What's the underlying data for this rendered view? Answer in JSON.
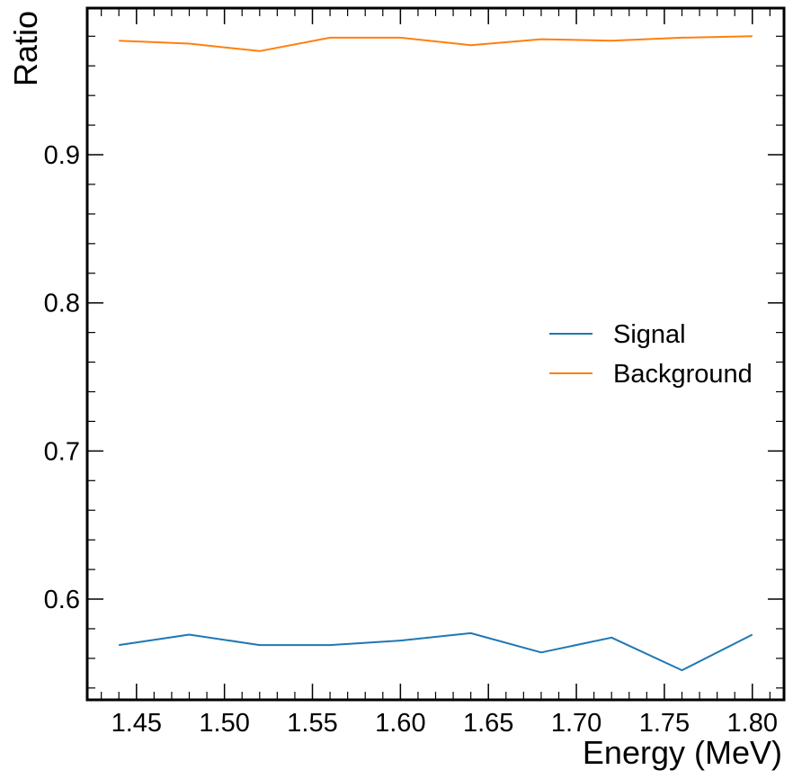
{
  "chart_data": {
    "type": "line",
    "xlabel": "Energy (MeV)",
    "ylabel": "Ratio",
    "xlim": [
      1.422,
      1.818
    ],
    "ylim": [
      0.532,
      0.999
    ],
    "x": [
      1.44,
      1.48,
      1.52,
      1.56,
      1.6,
      1.64,
      1.68,
      1.72,
      1.76,
      1.8
    ],
    "x_ticks": [
      "1.45",
      "1.50",
      "1.55",
      "1.60",
      "1.65",
      "1.70",
      "1.75",
      "1.80"
    ],
    "y_ticks": [
      "0.6",
      "0.7",
      "0.8",
      "0.9"
    ],
    "grid": false,
    "legend_position": "center-right",
    "series": [
      {
        "name": "Signal",
        "color": "#1f77b4",
        "values": [
          0.569,
          0.576,
          0.569,
          0.569,
          0.572,
          0.577,
          0.564,
          0.574,
          0.552,
          0.576
        ]
      },
      {
        "name": "Background",
        "color": "#ff7f0e",
        "values": [
          0.977,
          0.975,
          0.97,
          0.979,
          0.979,
          0.974,
          0.978,
          0.977,
          0.979,
          0.98
        ]
      }
    ]
  }
}
